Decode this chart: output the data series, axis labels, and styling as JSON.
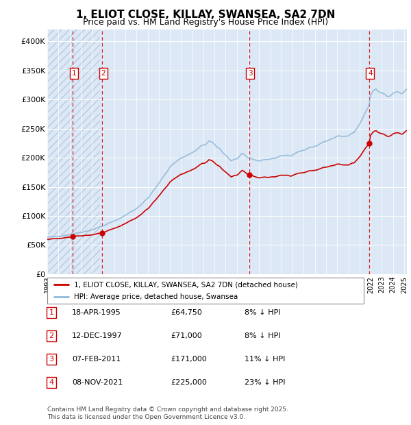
{
  "title": "1, ELIOT CLOSE, KILLAY, SWANSEA, SA2 7DN",
  "subtitle": "Price paid vs. HM Land Registry's House Price Index (HPI)",
  "ylim": [
    0,
    420000
  ],
  "yticks": [
    0,
    50000,
    100000,
    150000,
    200000,
    250000,
    300000,
    350000,
    400000
  ],
  "ytick_labels": [
    "£0",
    "£50K",
    "£100K",
    "£150K",
    "£200K",
    "£250K",
    "£300K",
    "£350K",
    "£400K"
  ],
  "background_color": "#dce8f5",
  "hatch_region_end": 1997.75,
  "grid_color": "#ffffff",
  "sale_year_nums": [
    1995.29,
    1997.92,
    2011.1,
    2021.85
  ],
  "sale_prices": [
    64750,
    71000,
    171000,
    225000
  ],
  "sale_labels": [
    "1",
    "2",
    "3",
    "4"
  ],
  "hpi_line_color": "#92b8d8",
  "price_line_color": "#cc0000",
  "vline_color": "#cc0000",
  "legend_label_price": "1, ELIOT CLOSE, KILLAY, SWANSEA, SA2 7DN (detached house)",
  "legend_label_hpi": "HPI: Average price, detached house, Swansea",
  "table_data": [
    [
      "1",
      "18-APR-1995",
      "£64,750",
      "8% ↓ HPI"
    ],
    [
      "2",
      "12-DEC-1997",
      "£71,000",
      "8% ↓ HPI"
    ],
    [
      "3",
      "07-FEB-2011",
      "£171,000",
      "11% ↓ HPI"
    ],
    [
      "4",
      "08-NOV-2021",
      "£225,000",
      "23% ↓ HPI"
    ]
  ],
  "footnote": "Contains HM Land Registry data © Crown copyright and database right 2025.\nThis data is licensed under the Open Government Licence v3.0.",
  "xmin": 1993.0,
  "xmax": 2025.25
}
